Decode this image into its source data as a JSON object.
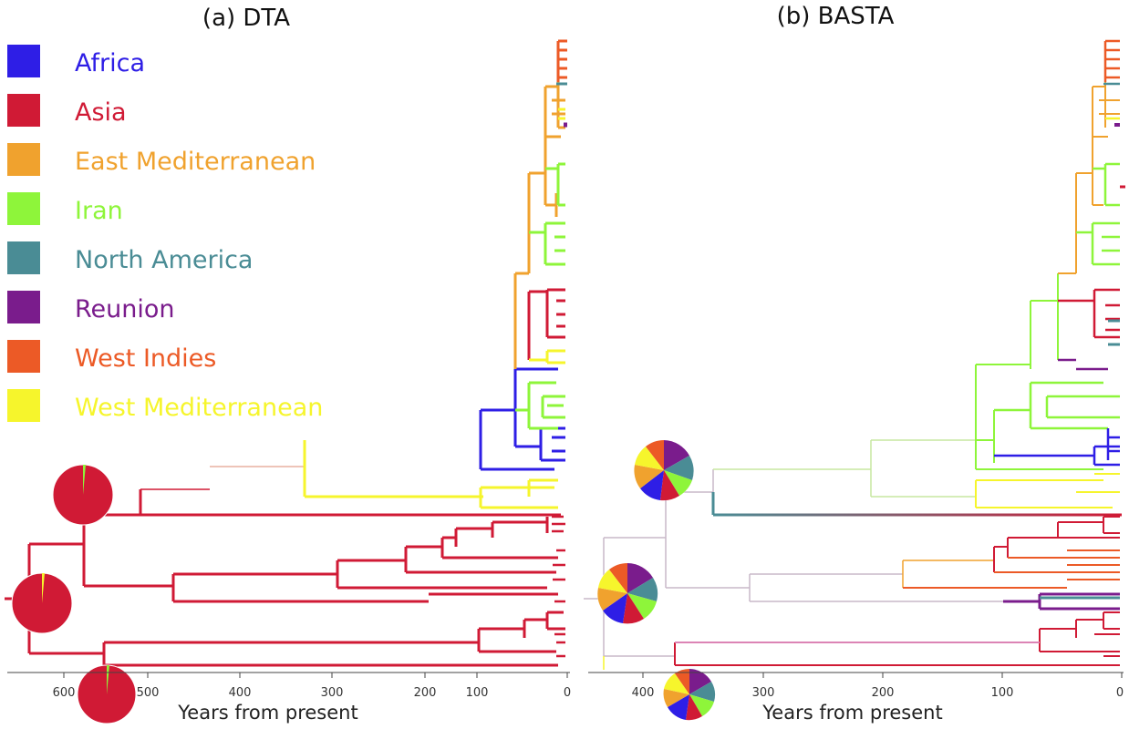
{
  "panels": [
    {
      "title": "(a) DTA",
      "xlabel": "Years from present",
      "ticks": [
        "600",
        "500",
        "400",
        "300",
        "200",
        "100",
        "0"
      ]
    },
    {
      "title": "(b) BASTA",
      "xlabel": "Years from present",
      "ticks": [
        "400",
        "300",
        "200",
        "100",
        "0"
      ]
    }
  ],
  "legend": [
    {
      "label": "Africa",
      "color": "#2e1ee6"
    },
    {
      "label": "Asia",
      "color": "#d01a35"
    },
    {
      "label": "East Mediterranean",
      "color": "#f0a22e"
    },
    {
      "label": "Iran",
      "color": "#8ef53a"
    },
    {
      "label": "North America",
      "color": "#4a8c95"
    },
    {
      "label": "Reunion",
      "color": "#7a1c8c"
    },
    {
      "label": "West Indies",
      "color": "#ec5a26"
    },
    {
      "label": "West Mediterranean",
      "color": "#f6f52c"
    }
  ]
}
